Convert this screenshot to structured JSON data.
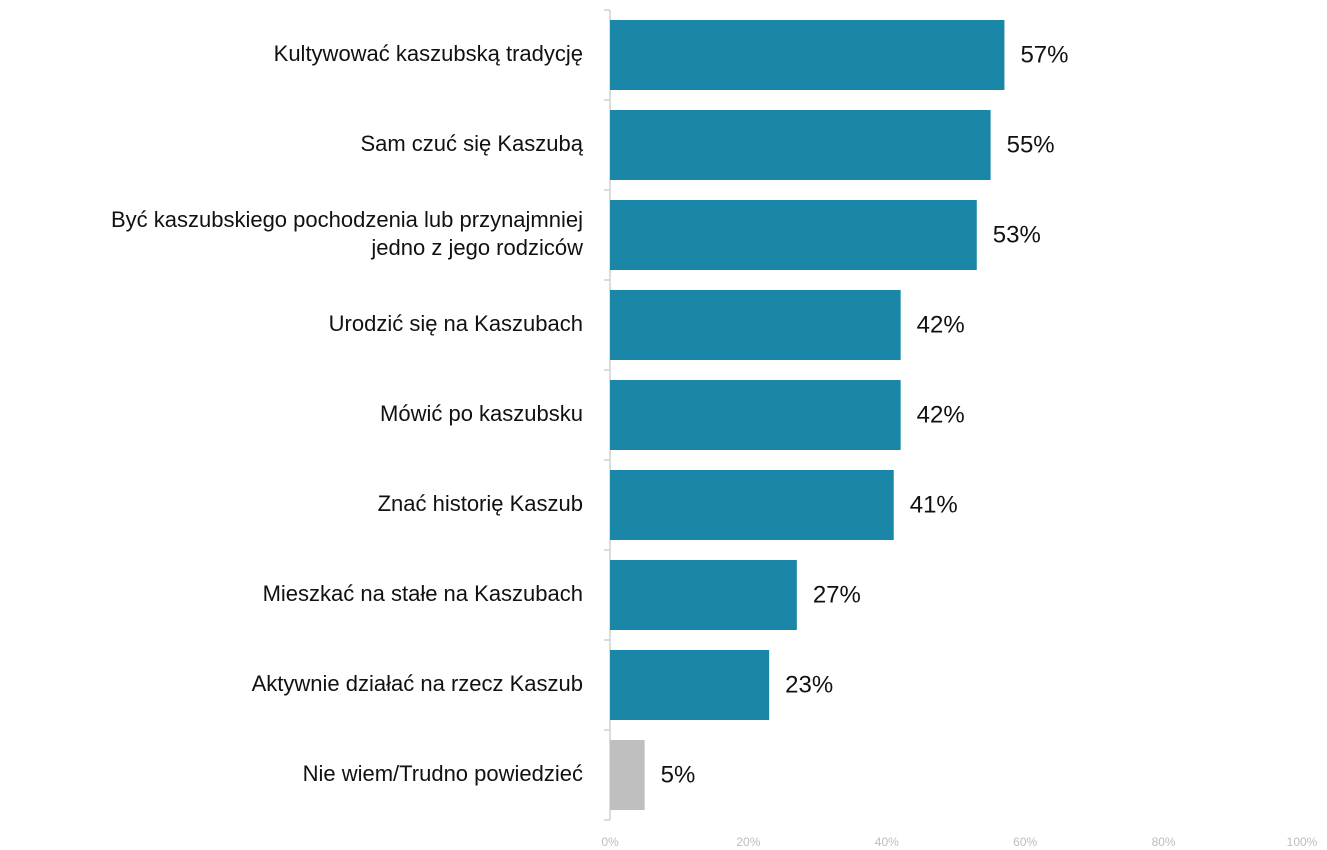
{
  "chart_data": {
    "type": "bar",
    "orientation": "horizontal",
    "categories": [
      "Kultywować kaszubską tradycję",
      "Sam czuć się Kaszubą",
      "Być kaszubskiego pochodzenia lub przynajmniej\njedno z jego rodziców",
      "Urodzić się na Kaszubach",
      "Mówić po kaszubsku",
      "Znać historię Kaszub",
      "Mieszkać na stałe na Kaszubach",
      "Aktywnie działać na rzecz Kaszub",
      "Nie wiem/Trudno powiedzieć"
    ],
    "values": [
      57,
      55,
      53,
      42,
      42,
      41,
      27,
      23,
      5
    ],
    "value_labels": [
      "57%",
      "55%",
      "53%",
      "42%",
      "42%",
      "41%",
      "27%",
      "23%",
      "5%"
    ],
    "colors": [
      "#1a86a8",
      "#1a86a8",
      "#1a86a8",
      "#1a86a8",
      "#1a86a8",
      "#1a86a8",
      "#1a86a8",
      "#1a86a8",
      "#bfbfbf"
    ],
    "xlim": [
      0,
      100
    ],
    "xticks": [
      {
        "value": 0,
        "label": "0%"
      },
      {
        "value": 20,
        "label": "20%"
      },
      {
        "value": 40,
        "label": "40%"
      },
      {
        "value": 60,
        "label": "60%"
      },
      {
        "value": 80,
        "label": "80%"
      },
      {
        "value": 100,
        "label": "100%"
      }
    ],
    "grid": false
  }
}
